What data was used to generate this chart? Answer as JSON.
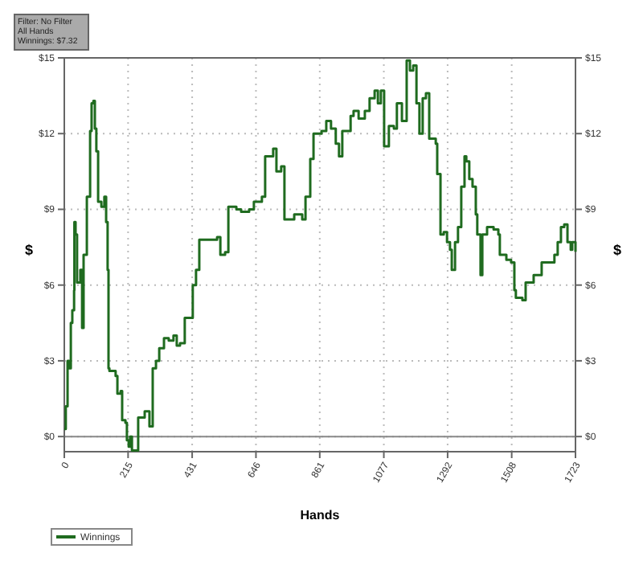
{
  "chart_data": {
    "type": "step",
    "xlabel": "Hands",
    "ylabel": "$",
    "y2label": "$",
    "annotations": [
      "Filter: No Filter",
      "All Hands",
      "Winnings: $7.32"
    ],
    "xlim": [
      0,
      1723
    ],
    "xticks": [
      0,
      215,
      431,
      646,
      861,
      1077,
      1292,
      1508,
      1723
    ],
    "ylim": [
      -0.6,
      15
    ],
    "yticks": [
      {
        "value": 0,
        "label": "$0"
      },
      {
        "value": 3,
        "label": "$3"
      },
      {
        "value": 6,
        "label": "$6"
      },
      {
        "value": 9,
        "label": "$9"
      },
      {
        "value": 12,
        "label": "$12"
      },
      {
        "value": 15,
        "label": "$15"
      }
    ],
    "y2lim": [
      -0.6,
      15
    ],
    "y2ticks": [
      {
        "value": 0,
        "label": "$0"
      },
      {
        "value": 3,
        "label": "$3"
      },
      {
        "value": 6,
        "label": "$6"
      },
      {
        "value": 9,
        "label": "$9"
      },
      {
        "value": 12,
        "label": "$12"
      },
      {
        "value": 15,
        "label": "$15"
      }
    ],
    "grid": true,
    "legend": "bottom left",
    "line_style": "solid",
    "marker": "none",
    "ref_lines": [
      {
        "axis": "y",
        "value": 0,
        "color": "#888888"
      }
    ],
    "series": [
      {
        "name": "Winnings",
        "color": "#1f6b1f",
        "x": [
          0,
          5,
          11,
          16,
          22,
          27,
          33,
          34,
          38,
          43,
          54,
          60,
          65,
          76,
          87,
          92,
          98,
          103,
          108,
          114,
          125,
          135,
          141,
          146,
          149,
          152,
          173,
          179,
          190,
          195,
          206,
          211,
          217,
          222,
          228,
          244,
          249,
          260,
          271,
          287,
          298,
          309,
          320,
          336,
          352,
          368,
          379,
          390,
          406,
          428,
          433,
          444,
          455,
          488,
          515,
          526,
          542,
          553,
          580,
          596,
          623,
          639,
          666,
          677,
          704,
          715,
          731,
          742,
          775,
          802,
          813,
          829,
          840,
          867,
          883,
          899,
          915,
          926,
          937,
          965,
          975,
          992,
          1013,
          1029,
          1046,
          1057,
          1067,
          1078,
          1094,
          1111,
          1121,
          1138,
          1154,
          1165,
          1176,
          1187,
          1197,
          1208,
          1219,
          1230,
          1252,
          1257,
          1268,
          1279,
          1290,
          1300,
          1306,
          1317,
          1327,
          1338,
          1349,
          1355,
          1365,
          1376,
          1387,
          1392,
          1403,
          1409,
          1425,
          1447,
          1463,
          1468,
          1490,
          1506,
          1517,
          1522,
          1544,
          1555,
          1582,
          1609,
          1652,
          1663,
          1674,
          1685,
          1696,
          1707,
          1712,
          1723
        ],
        "values": [
          0.3,
          1.2,
          3.0,
          2.7,
          4.5,
          5.0,
          5.8,
          8.5,
          8.0,
          6.1,
          6.6,
          4.3,
          7.2,
          9.5,
          12.1,
          13.2,
          13.3,
          12.2,
          11.3,
          9.3,
          9.1,
          9.5,
          8.5,
          6.6,
          2.7,
          2.6,
          2.4,
          1.7,
          1.8,
          0.65,
          0.55,
          -0.15,
          -0.4,
          0,
          -0.55,
          -0.55,
          0.75,
          0.75,
          1.0,
          0.4,
          2.7,
          3.0,
          3.5,
          3.9,
          3.8,
          4.0,
          3.6,
          3.7,
          4.7,
          4.7,
          6.0,
          6.6,
          7.8,
          7.8,
          7.9,
          7.2,
          7.3,
          9.1,
          9.0,
          8.9,
          9.0,
          9.3,
          9.5,
          11.1,
          11.4,
          10.5,
          10.7,
          8.6,
          8.8,
          8.6,
          9.5,
          11.0,
          12.0,
          12.1,
          12.5,
          12.2,
          11.6,
          11.1,
          12.1,
          12.7,
          12.9,
          12.6,
          12.9,
          13.4,
          13.7,
          13.2,
          13.7,
          11.5,
          12.3,
          12.2,
          13.2,
          12.5,
          14.9,
          14.5,
          14.7,
          13.2,
          12.0,
          13.4,
          13.6,
          11.8,
          11.6,
          10.4,
          8.0,
          8.1,
          7.7,
          7.4,
          6.6,
          7.7,
          8.3,
          9.9,
          11.1,
          10.9,
          10.2,
          9.9,
          8.8,
          8.0,
          6.4,
          8.0,
          8.3,
          8.2,
          8.0,
          7.2,
          7.0,
          6.9,
          5.8,
          5.5,
          5.4,
          6.1,
          6.4,
          6.9,
          7.2,
          7.7,
          8.3,
          8.4,
          7.7,
          7.4,
          7.7,
          7.32
        ]
      }
    ]
  }
}
